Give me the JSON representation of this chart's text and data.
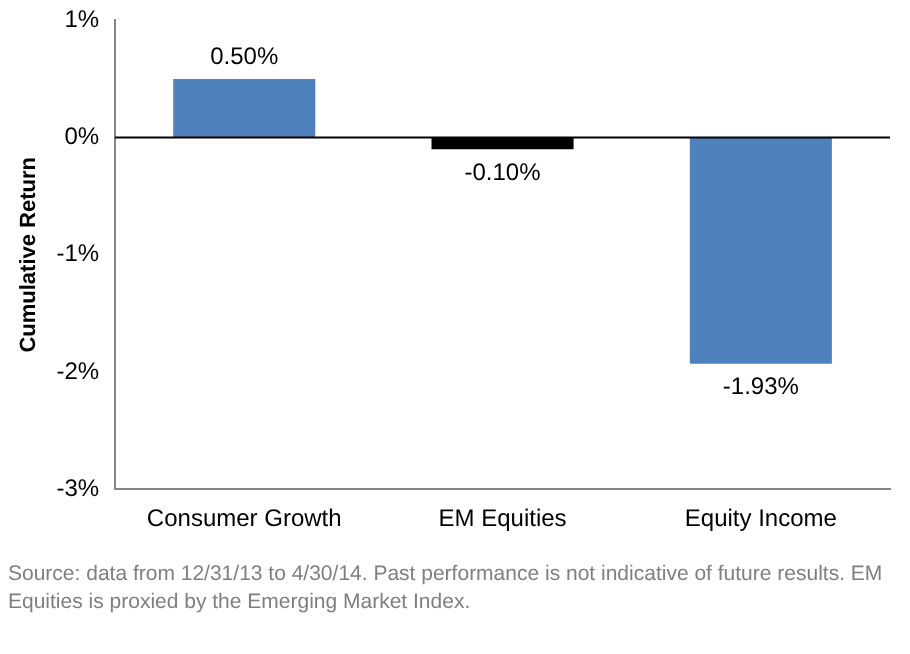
{
  "chart_data": {
    "type": "bar",
    "ylabel": "Cumulative Return",
    "categories": [
      "Consumer Growth",
      "EM Equities",
      "Equity Income"
    ],
    "values": [
      0.5,
      -0.1,
      -1.93
    ],
    "colors": [
      "#4f81bd",
      "#000000",
      "#4f81bd"
    ],
    "value_labels": [
      "0.50%",
      "-0.10%",
      "-1.93%"
    ],
    "ylim": [
      -3,
      1
    ],
    "yticks": [
      {
        "value": -3,
        "label": "-3%"
      },
      {
        "value": -2,
        "label": "-2%"
      },
      {
        "value": -1,
        "label": "-1%"
      },
      {
        "value": 0,
        "label": "0%"
      },
      {
        "value": 1,
        "label": "1%"
      }
    ],
    "grid": false,
    "legend": false,
    "ref_lines": [
      {
        "axis": "y",
        "value": 0,
        "color": "#000000"
      }
    ],
    "annotations": [
      "Source: data from 12/31/13 to 4/30/14. Past performance is not indicative of future results. EM Equities is proxied by the Emerging Market Index."
    ]
  }
}
